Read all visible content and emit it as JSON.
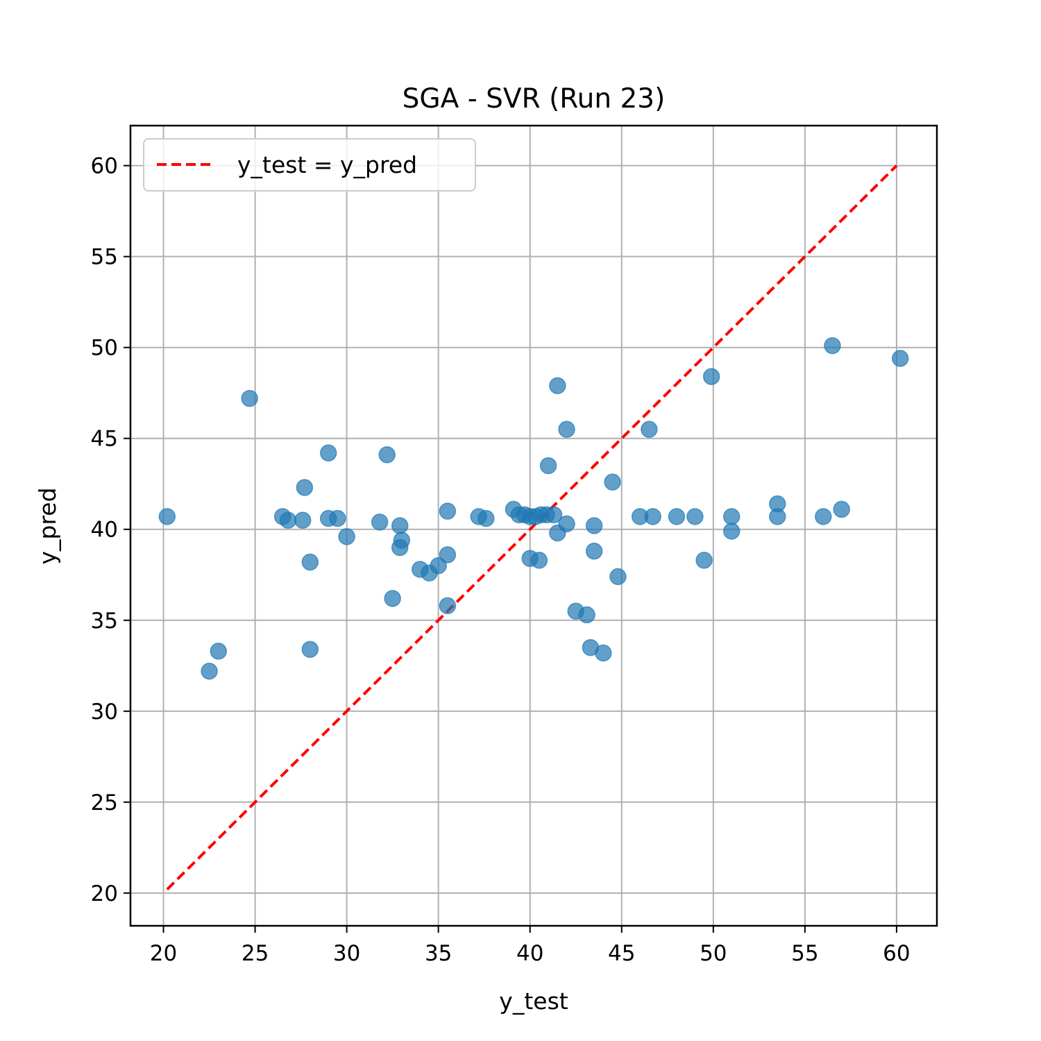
{
  "chart_data": {
    "type": "scatter",
    "title": "SGA - SVR (Run 23)",
    "xlabel": "y_test",
    "ylabel": "y_pred",
    "xlim": [
      18.2,
      62.2
    ],
    "ylim": [
      18.2,
      62.2
    ],
    "xticks": [
      20,
      25,
      30,
      35,
      40,
      45,
      50,
      55,
      60
    ],
    "yticks": [
      20,
      25,
      30,
      35,
      40,
      45,
      50,
      55,
      60
    ],
    "grid": true,
    "legend": {
      "placement": "upper left",
      "entries": [
        "y_test = y_pred"
      ]
    },
    "reference_line": {
      "label": "y_test = y_pred",
      "x": [
        20.2,
        60.0
      ],
      "y": [
        20.2,
        60.0
      ],
      "color": "#ff0000",
      "style": "dashed"
    },
    "point_color": "#1f77b4",
    "points": [
      [
        20.2,
        40.7
      ],
      [
        22.5,
        32.2
      ],
      [
        23.0,
        33.3
      ],
      [
        24.7,
        47.2
      ],
      [
        26.5,
        40.7
      ],
      [
        26.8,
        40.5
      ],
      [
        27.6,
        40.5
      ],
      [
        27.7,
        42.3
      ],
      [
        28.0,
        38.2
      ],
      [
        28.0,
        33.4
      ],
      [
        29.0,
        40.6
      ],
      [
        29.0,
        44.2
      ],
      [
        29.5,
        40.6
      ],
      [
        30.0,
        39.6
      ],
      [
        31.8,
        40.4
      ],
      [
        32.2,
        44.1
      ],
      [
        32.5,
        36.2
      ],
      [
        32.9,
        40.2
      ],
      [
        33.0,
        39.4
      ],
      [
        32.9,
        39.0
      ],
      [
        34.0,
        37.8
      ],
      [
        34.5,
        37.6
      ],
      [
        35.0,
        38.0
      ],
      [
        35.5,
        38.6
      ],
      [
        35.5,
        41.0
      ],
      [
        35.5,
        35.8
      ],
      [
        37.2,
        40.7
      ],
      [
        37.6,
        40.6
      ],
      [
        39.1,
        41.1
      ],
      [
        39.4,
        40.8
      ],
      [
        39.7,
        40.8
      ],
      [
        40.0,
        40.7
      ],
      [
        40.3,
        40.7
      ],
      [
        40.6,
        40.8
      ],
      [
        40.9,
        40.8
      ],
      [
        41.3,
        40.8
      ],
      [
        40.0,
        38.4
      ],
      [
        40.5,
        38.3
      ],
      [
        41.0,
        43.5
      ],
      [
        41.5,
        47.9
      ],
      [
        42.0,
        45.5
      ],
      [
        41.5,
        39.8
      ],
      [
        42.0,
        40.3
      ],
      [
        42.5,
        35.5
      ],
      [
        43.1,
        35.3
      ],
      [
        43.3,
        33.5
      ],
      [
        43.5,
        40.2
      ],
      [
        43.5,
        38.8
      ],
      [
        44.0,
        33.2
      ],
      [
        44.5,
        42.6
      ],
      [
        44.8,
        37.4
      ],
      [
        46.0,
        40.7
      ],
      [
        46.5,
        45.5
      ],
      [
        46.7,
        40.7
      ],
      [
        48.0,
        40.7
      ],
      [
        49.0,
        40.7
      ],
      [
        49.5,
        38.3
      ],
      [
        49.9,
        48.4
      ],
      [
        51.0,
        40.7
      ],
      [
        51.0,
        39.9
      ],
      [
        53.5,
        41.4
      ],
      [
        53.5,
        40.7
      ],
      [
        56.0,
        40.7
      ],
      [
        56.5,
        50.1
      ],
      [
        57.0,
        41.1
      ],
      [
        60.2,
        49.4
      ]
    ]
  }
}
